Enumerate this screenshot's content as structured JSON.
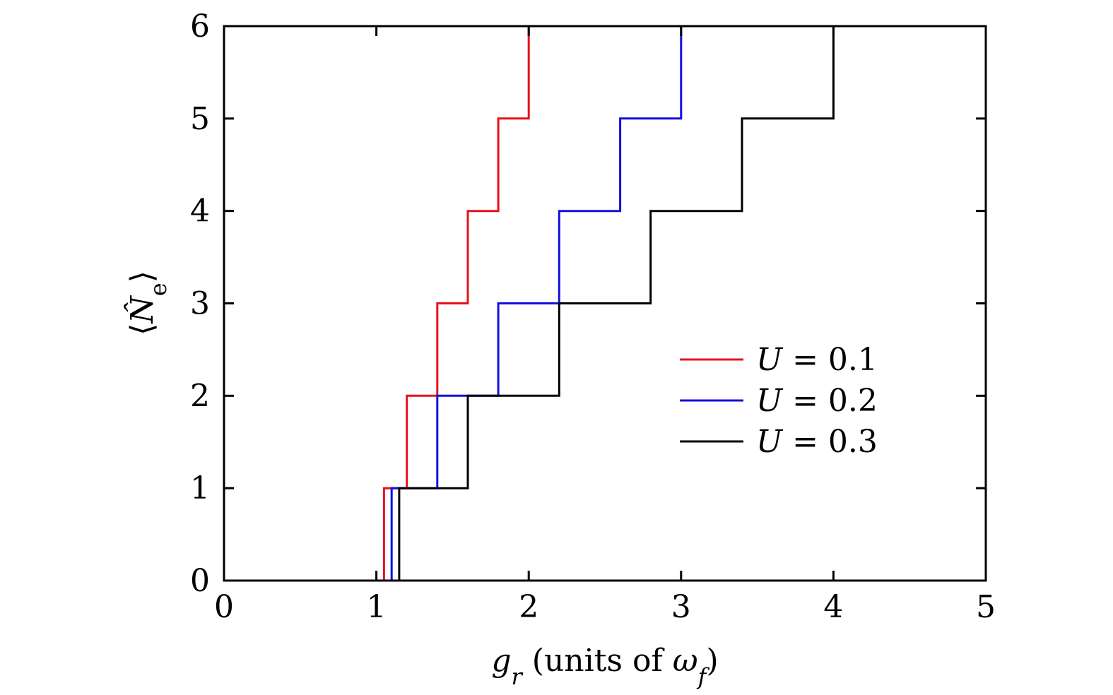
{
  "chart_data": {
    "type": "line",
    "step": true,
    "xlim": [
      0,
      5
    ],
    "ylim": [
      0,
      6
    ],
    "x_ticks": [
      0,
      1,
      2,
      3,
      4,
      5
    ],
    "y_ticks": [
      0,
      1,
      2,
      3,
      4,
      5,
      6
    ],
    "x_tick_labels": [
      "0",
      "1",
      "2",
      "3",
      "4",
      "5"
    ],
    "y_tick_labels": [
      "0",
      "1",
      "2",
      "3",
      "4",
      "5",
      "6"
    ],
    "xlabel": {
      "main": "g",
      "sub": "r",
      "text": " (units of ",
      "omega": "ω",
      "omega_sub": "f",
      "close": ")"
    },
    "ylabel": {
      "open": "⟨",
      "symbol": "N̂",
      "sub": "e",
      "close": "⟩"
    },
    "grid": false,
    "legend_position": "center-right",
    "series": [
      {
        "name": "U = 0.1",
        "color": "#e8101c",
        "x": [
          0,
          1.05,
          1.05,
          1.2,
          1.2,
          1.4,
          1.4,
          1.6,
          1.6,
          1.8,
          1.8,
          2.0,
          2.0,
          2.2
        ],
        "y": [
          0,
          0,
          1,
          1,
          2,
          2,
          3,
          3,
          4,
          4,
          5,
          5,
          6,
          6
        ]
      },
      {
        "name": "U = 0.2",
        "color": "#1010e0",
        "x": [
          0,
          1.1,
          1.1,
          1.4,
          1.4,
          1.8,
          1.8,
          2.2,
          2.2,
          2.6,
          2.6,
          3.0,
          3.0,
          3.4
        ],
        "y": [
          0,
          0,
          1,
          1,
          2,
          2,
          3,
          3,
          4,
          4,
          5,
          5,
          6,
          6
        ]
      },
      {
        "name": "U = 0.3",
        "color": "#000000",
        "x": [
          0,
          1.15,
          1.15,
          1.6,
          1.6,
          2.2,
          2.2,
          2.8,
          2.8,
          3.4,
          3.4,
          4.0,
          4.0,
          4.6
        ],
        "y": [
          0,
          0,
          1,
          1,
          2,
          2,
          3,
          3,
          4,
          4,
          5,
          5,
          6,
          6
        ]
      }
    ],
    "legend": [
      {
        "prefix": "U",
        "rest": " = 0.1"
      },
      {
        "prefix": "U",
        "rest": " = 0.2"
      },
      {
        "prefix": "U",
        "rest": " = 0.3"
      }
    ]
  }
}
